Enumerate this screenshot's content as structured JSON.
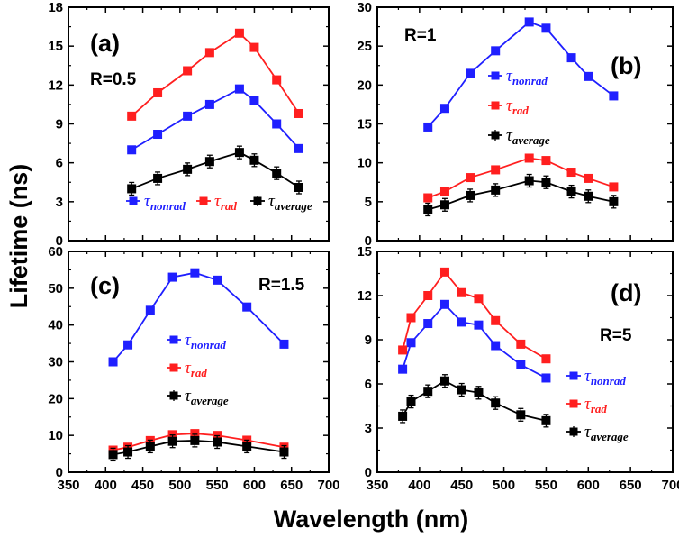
{
  "figure": {
    "xlabel": "Wavelength (nm)",
    "ylabel": "Lifetime (ns)"
  },
  "colors": {
    "nonrad": "#1f1fff",
    "rad": "#ff1f1f",
    "average": "#000000"
  },
  "chart_data": [
    {
      "type": "line",
      "panel": "(a)",
      "label": "R=0.5",
      "xlim": [
        350,
        700
      ],
      "ylim": [
        0,
        18
      ],
      "xticks": [
        350,
        400,
        450,
        500,
        550,
        600,
        650,
        700
      ],
      "yticks": [
        0,
        3,
        6,
        9,
        12,
        15,
        18
      ],
      "show_xticklabels": false,
      "legend": "bottom-row",
      "x": [
        435,
        470,
        510,
        540,
        580,
        600,
        630,
        660
      ],
      "series": [
        {
          "key": "nonrad",
          "name": "τ",
          "sub": "nonrad",
          "values": [
            7.0,
            8.2,
            9.6,
            10.5,
            11.7,
            10.8,
            9.0,
            7.1
          ]
        },
        {
          "key": "rad",
          "name": "τ",
          "sub": "rad",
          "values": [
            9.6,
            11.4,
            13.1,
            14.5,
            16.0,
            14.9,
            12.4,
            9.8
          ]
        },
        {
          "key": "average",
          "name": "τ",
          "sub": "average",
          "values": [
            4.0,
            4.8,
            5.5,
            6.1,
            6.8,
            6.2,
            5.2,
            4.1
          ]
        }
      ]
    },
    {
      "type": "line",
      "panel": "(b)",
      "label": "R=1",
      "xlim": [
        350,
        700
      ],
      "ylim": [
        0,
        30
      ],
      "xticks": [
        350,
        400,
        450,
        500,
        550,
        600,
        650,
        700
      ],
      "yticks": [
        0,
        5,
        10,
        15,
        20,
        25,
        30
      ],
      "show_xticklabels": false,
      "legend": "center-right",
      "x": [
        410,
        430,
        460,
        490,
        530,
        550,
        580,
        600,
        630
      ],
      "series": [
        {
          "key": "nonrad",
          "name": "τ",
          "sub": "nonrad",
          "values": [
            14.6,
            17.0,
            21.5,
            24.4,
            28.1,
            27.3,
            23.5,
            21.1,
            18.6
          ]
        },
        {
          "key": "rad",
          "name": "τ",
          "sub": "rad",
          "values": [
            5.5,
            6.3,
            8.1,
            9.1,
            10.6,
            10.3,
            8.8,
            8.0,
            6.9
          ]
        },
        {
          "key": "average",
          "name": "τ",
          "sub": "average",
          "values": [
            4.0,
            4.6,
            5.8,
            6.5,
            7.7,
            7.5,
            6.3,
            5.7,
            5.0
          ]
        }
      ]
    },
    {
      "type": "line",
      "panel": "(c)",
      "label": "R=1.5",
      "xlim": [
        350,
        700
      ],
      "ylim": [
        0,
        60
      ],
      "xticks": [
        350,
        400,
        450,
        500,
        550,
        600,
        650,
        700
      ],
      "yticks": [
        0,
        10,
        20,
        30,
        40,
        50,
        60
      ],
      "show_xticklabels": true,
      "legend": "center",
      "x": [
        410,
        430,
        460,
        490,
        520,
        550,
        590,
        640
      ],
      "series": [
        {
          "key": "nonrad",
          "name": "τ",
          "sub": "nonrad",
          "values": [
            30.0,
            34.6,
            44.0,
            53.0,
            54.2,
            52.2,
            44.9,
            34.8
          ]
        },
        {
          "key": "rad",
          "name": "τ",
          "sub": "rad",
          "values": [
            6.0,
            6.8,
            8.6,
            10.2,
            10.5,
            10.0,
            8.7,
            6.8
          ]
        },
        {
          "key": "average",
          "name": "τ",
          "sub": "average",
          "values": [
            4.8,
            5.5,
            7.0,
            8.4,
            8.6,
            8.2,
            7.0,
            5.5
          ]
        }
      ]
    },
    {
      "type": "line",
      "panel": "(d)",
      "label": "R=5",
      "xlim": [
        350,
        700
      ],
      "ylim": [
        0,
        15
      ],
      "xticks": [
        350,
        400,
        450,
        500,
        550,
        600,
        650,
        700
      ],
      "yticks": [
        0,
        3,
        6,
        9,
        12,
        15
      ],
      "show_xticklabels": true,
      "legend": "lower-right",
      "x": [
        380,
        390,
        410,
        430,
        450,
        470,
        490,
        520,
        550
      ],
      "series": [
        {
          "key": "nonrad",
          "name": "τ",
          "sub": "nonrad",
          "values": [
            7.0,
            8.8,
            10.1,
            11.4,
            10.2,
            10.0,
            8.6,
            7.3,
            6.4
          ]
        },
        {
          "key": "rad",
          "name": "τ",
          "sub": "rad",
          "values": [
            8.3,
            10.5,
            12.0,
            13.6,
            12.2,
            11.8,
            10.3,
            8.7,
            7.7
          ]
        },
        {
          "key": "average",
          "name": "τ",
          "sub": "average",
          "values": [
            3.8,
            4.8,
            5.5,
            6.2,
            5.6,
            5.4,
            4.7,
            3.9,
            3.5
          ]
        }
      ]
    }
  ]
}
